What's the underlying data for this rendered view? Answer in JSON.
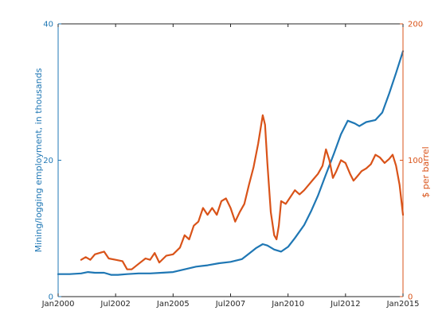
{
  "chart_data": {
    "type": "line",
    "title": "",
    "xlabel": "",
    "x_ticks": [
      {
        "label": "Jan2000",
        "year": 2000.0
      },
      {
        "label": "Jul2002",
        "year": 2002.5
      },
      {
        "label": "Jan2005",
        "year": 2005.0
      },
      {
        "label": "Jul2007",
        "year": 2007.5
      },
      {
        "label": "Jan2010",
        "year": 2010.0
      },
      {
        "label": "Jul2012",
        "year": 2012.5
      },
      {
        "label": "Jan2015",
        "year": 2015.0
      }
    ],
    "xlim": [
      2000.0,
      2015.0
    ],
    "left_axis": {
      "label": "Mining/logging employment, in thousands",
      "ylim": [
        0,
        40
      ],
      "ticks": [
        "0",
        "20",
        "40"
      ],
      "color": "#1f77b4"
    },
    "right_axis": {
      "label": "$ per barrel",
      "ylim": [
        0,
        200
      ],
      "ticks": [
        "0",
        "100",
        "200"
      ],
      "color": "#d95319"
    },
    "series": [
      {
        "axis": "left",
        "color": "#1f77b4",
        "points": [
          [
            2000.0,
            3.3
          ],
          [
            2000.5,
            3.3
          ],
          [
            2001.0,
            3.4
          ],
          [
            2001.3,
            3.6
          ],
          [
            2001.6,
            3.5
          ],
          [
            2002.0,
            3.5
          ],
          [
            2002.3,
            3.2
          ],
          [
            2002.6,
            3.2
          ],
          [
            2003.0,
            3.3
          ],
          [
            2003.5,
            3.4
          ],
          [
            2004.0,
            3.4
          ],
          [
            2004.5,
            3.5
          ],
          [
            2005.0,
            3.6
          ],
          [
            2005.5,
            4.0
          ],
          [
            2006.0,
            4.4
          ],
          [
            2006.5,
            4.6
          ],
          [
            2007.0,
            4.9
          ],
          [
            2007.5,
            5.1
          ],
          [
            2008.0,
            5.5
          ],
          [
            2008.3,
            6.3
          ],
          [
            2008.6,
            7.1
          ],
          [
            2008.9,
            7.7
          ],
          [
            2009.1,
            7.5
          ],
          [
            2009.4,
            6.9
          ],
          [
            2009.7,
            6.6
          ],
          [
            2010.0,
            7.3
          ],
          [
            2010.3,
            8.6
          ],
          [
            2010.7,
            10.5
          ],
          [
            2011.0,
            12.5
          ],
          [
            2011.3,
            14.8
          ],
          [
            2011.6,
            17.5
          ],
          [
            2012.0,
            21.0
          ],
          [
            2012.3,
            23.8
          ],
          [
            2012.6,
            25.8
          ],
          [
            2012.9,
            25.4
          ],
          [
            2013.1,
            25.0
          ],
          [
            2013.4,
            25.6
          ],
          [
            2013.8,
            25.9
          ],
          [
            2014.1,
            27.0
          ],
          [
            2014.4,
            29.8
          ],
          [
            2014.7,
            32.8
          ],
          [
            2015.0,
            36.0
          ]
        ]
      },
      {
        "axis": "right",
        "color": "#d95319",
        "points": [
          [
            2001.0,
            27
          ],
          [
            2001.2,
            29
          ],
          [
            2001.4,
            27
          ],
          [
            2001.6,
            31
          ],
          [
            2001.8,
            32
          ],
          [
            2002.0,
            33
          ],
          [
            2002.2,
            28
          ],
          [
            2002.5,
            27
          ],
          [
            2002.8,
            26
          ],
          [
            2003.0,
            20
          ],
          [
            2003.2,
            20
          ],
          [
            2003.5,
            24
          ],
          [
            2003.8,
            28
          ],
          [
            2004.0,
            27
          ],
          [
            2004.2,
            32
          ],
          [
            2004.4,
            25
          ],
          [
            2004.7,
            30
          ],
          [
            2005.0,
            31
          ],
          [
            2005.3,
            36
          ],
          [
            2005.5,
            45
          ],
          [
            2005.7,
            42
          ],
          [
            2005.9,
            52
          ],
          [
            2006.1,
            55
          ],
          [
            2006.3,
            65
          ],
          [
            2006.5,
            60
          ],
          [
            2006.7,
            65
          ],
          [
            2006.9,
            60
          ],
          [
            2007.1,
            70
          ],
          [
            2007.3,
            72
          ],
          [
            2007.5,
            65
          ],
          [
            2007.7,
            55
          ],
          [
            2007.9,
            62
          ],
          [
            2008.1,
            68
          ],
          [
            2008.3,
            82
          ],
          [
            2008.5,
            95
          ],
          [
            2008.7,
            112
          ],
          [
            2008.9,
            133
          ],
          [
            2009.0,
            126
          ],
          [
            2009.1,
            98
          ],
          [
            2009.25,
            62
          ],
          [
            2009.4,
            45
          ],
          [
            2009.5,
            42
          ],
          [
            2009.6,
            52
          ],
          [
            2009.7,
            70
          ],
          [
            2009.9,
            68
          ],
          [
            2010.1,
            73
          ],
          [
            2010.3,
            78
          ],
          [
            2010.5,
            75
          ],
          [
            2010.7,
            78
          ],
          [
            2010.9,
            82
          ],
          [
            2011.1,
            86
          ],
          [
            2011.3,
            90
          ],
          [
            2011.5,
            96
          ],
          [
            2011.65,
            108
          ],
          [
            2011.8,
            100
          ],
          [
            2011.95,
            87
          ],
          [
            2012.1,
            92
          ],
          [
            2012.3,
            100
          ],
          [
            2012.5,
            98
          ],
          [
            2012.7,
            90
          ],
          [
            2012.85,
            85
          ],
          [
            2013.0,
            88
          ],
          [
            2013.2,
            92
          ],
          [
            2013.4,
            94
          ],
          [
            2013.6,
            97
          ],
          [
            2013.8,
            104
          ],
          [
            2014.0,
            102
          ],
          [
            2014.2,
            98
          ],
          [
            2014.4,
            101
          ],
          [
            2014.55,
            104
          ],
          [
            2014.7,
            96
          ],
          [
            2014.85,
            82
          ],
          [
            2015.0,
            60
          ]
        ]
      }
    ]
  }
}
